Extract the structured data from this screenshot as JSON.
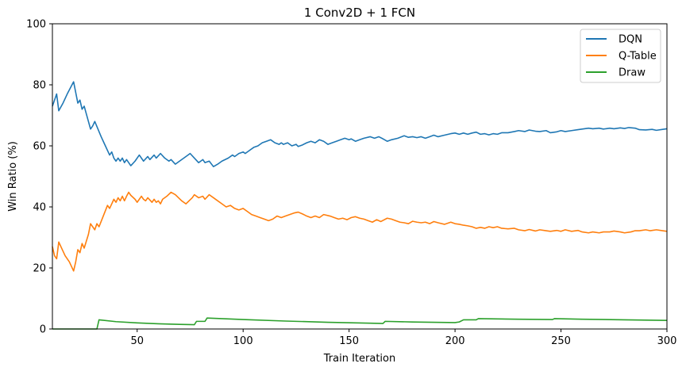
{
  "chart_data": {
    "type": "line",
    "title": "1 Conv2D + 1 FCN",
    "xlabel": "Train Iteration",
    "ylabel": "Win Ratio (%)",
    "xlim": [
      10,
      300
    ],
    "ylim": [
      0,
      100
    ],
    "xticks": [
      50,
      100,
      150,
      200,
      250,
      300
    ],
    "yticks": [
      0,
      20,
      40,
      60,
      80,
      100
    ],
    "grid": false,
    "legend_position": "upper right",
    "series": [
      {
        "name": "DQN",
        "color": "#1f77b4",
        "points": [
          [
            10,
            73
          ],
          [
            12,
            77
          ],
          [
            13,
            71.5
          ],
          [
            15,
            74
          ],
          [
            17,
            77
          ],
          [
            20,
            81
          ],
          [
            22,
            74
          ],
          [
            23,
            75
          ],
          [
            24,
            72
          ],
          [
            25,
            73
          ],
          [
            27,
            68
          ],
          [
            28,
            65.5
          ],
          [
            29,
            66.5
          ],
          [
            30,
            68
          ],
          [
            33,
            63
          ],
          [
            35,
            60
          ],
          [
            37,
            57
          ],
          [
            38,
            58
          ],
          [
            39,
            56
          ],
          [
            40,
            55
          ],
          [
            41,
            56
          ],
          [
            42,
            55
          ],
          [
            43,
            56
          ],
          [
            44,
            54.5
          ],
          [
            45,
            55.5
          ],
          [
            47,
            53.5
          ],
          [
            49,
            55
          ],
          [
            51,
            57
          ],
          [
            53,
            55
          ],
          [
            55,
            56.5
          ],
          [
            56,
            55.5
          ],
          [
            58,
            57
          ],
          [
            59,
            56
          ],
          [
            61,
            57.5
          ],
          [
            63,
            56
          ],
          [
            65,
            55
          ],
          [
            66,
            55.5
          ],
          [
            68,
            54
          ],
          [
            70,
            55
          ],
          [
            73,
            56.5
          ],
          [
            75,
            57.5
          ],
          [
            77,
            56
          ],
          [
            79,
            54.5
          ],
          [
            81,
            55.5
          ],
          [
            82,
            54.5
          ],
          [
            84,
            55
          ],
          [
            86,
            53.2
          ],
          [
            88,
            54
          ],
          [
            90,
            55
          ],
          [
            93,
            56
          ],
          [
            95,
            57
          ],
          [
            96,
            56.5
          ],
          [
            98,
            57.5
          ],
          [
            100,
            58
          ],
          [
            101,
            57.5
          ],
          [
            103,
            58.5
          ],
          [
            105,
            59.5
          ],
          [
            107,
            60
          ],
          [
            109,
            61
          ],
          [
            111,
            61.5
          ],
          [
            113,
            62
          ],
          [
            115,
            61
          ],
          [
            117,
            60.5
          ],
          [
            118,
            61
          ],
          [
            119,
            60.5
          ],
          [
            121,
            61
          ],
          [
            123,
            60
          ],
          [
            125,
            60.5
          ],
          [
            126,
            59.8
          ],
          [
            128,
            60.3
          ],
          [
            130,
            61
          ],
          [
            132,
            61.5
          ],
          [
            134,
            61
          ],
          [
            136,
            62
          ],
          [
            138,
            61.5
          ],
          [
            140,
            60.5
          ],
          [
            142,
            61
          ],
          [
            144,
            61.5
          ],
          [
            146,
            62
          ],
          [
            148,
            62.5
          ],
          [
            150,
            62
          ],
          [
            151,
            62.3
          ],
          [
            153,
            61.5
          ],
          [
            155,
            62
          ],
          [
            157,
            62.5
          ],
          [
            160,
            63
          ],
          [
            162,
            62.5
          ],
          [
            164,
            63
          ],
          [
            166,
            62.3
          ],
          [
            168,
            61.5
          ],
          [
            170,
            62
          ],
          [
            173,
            62.5
          ],
          [
            176,
            63.3
          ],
          [
            178,
            62.8
          ],
          [
            180,
            63
          ],
          [
            182,
            62.7
          ],
          [
            184,
            63
          ],
          [
            186,
            62.5
          ],
          [
            188,
            63
          ],
          [
            190,
            63.5
          ],
          [
            192,
            63
          ],
          [
            195,
            63.5
          ],
          [
            198,
            64
          ],
          [
            200,
            64.2
          ],
          [
            202,
            63.8
          ],
          [
            204,
            64.2
          ],
          [
            206,
            63.8
          ],
          [
            208,
            64.2
          ],
          [
            210,
            64.5
          ],
          [
            212,
            63.8
          ],
          [
            214,
            64
          ],
          [
            216,
            63.6
          ],
          [
            218,
            64
          ],
          [
            220,
            63.8
          ],
          [
            222,
            64.3
          ],
          [
            225,
            64.3
          ],
          [
            228,
            64.7
          ],
          [
            230,
            65
          ],
          [
            233,
            64.7
          ],
          [
            235,
            65.2
          ],
          [
            238,
            64.8
          ],
          [
            240,
            64.7
          ],
          [
            243,
            65
          ],
          [
            245,
            64.3
          ],
          [
            248,
            64.6
          ],
          [
            250,
            65
          ],
          [
            252,
            64.7
          ],
          [
            255,
            65
          ],
          [
            258,
            65.3
          ],
          [
            260,
            65.5
          ],
          [
            263,
            65.8
          ],
          [
            265,
            65.6
          ],
          [
            268,
            65.8
          ],
          [
            270,
            65.5
          ],
          [
            273,
            65.8
          ],
          [
            275,
            65.6
          ],
          [
            278,
            65.9
          ],
          [
            280,
            65.7
          ],
          [
            282,
            66
          ],
          [
            285,
            65.8
          ],
          [
            287,
            65.3
          ],
          [
            290,
            65.2
          ],
          [
            293,
            65.4
          ],
          [
            295,
            65.1
          ],
          [
            298,
            65.4
          ],
          [
            300,
            65.6
          ]
        ]
      },
      {
        "name": "Q-Table",
        "color": "#ff7f0e",
        "points": [
          [
            10,
            27
          ],
          [
            11,
            24
          ],
          [
            12,
            23
          ],
          [
            13,
            28.5
          ],
          [
            14,
            27
          ],
          [
            16,
            24
          ],
          [
            18,
            22
          ],
          [
            20,
            19
          ],
          [
            21,
            22
          ],
          [
            22,
            26
          ],
          [
            23,
            25
          ],
          [
            24,
            28
          ],
          [
            25,
            26.5
          ],
          [
            27,
            31
          ],
          [
            28,
            34.5
          ],
          [
            30,
            32.5
          ],
          [
            31,
            34.5
          ],
          [
            32,
            33.5
          ],
          [
            34,
            37
          ],
          [
            36,
            40.5
          ],
          [
            37,
            39.5
          ],
          [
            38,
            41
          ],
          [
            39,
            42.5
          ],
          [
            40,
            41.5
          ],
          [
            41,
            43
          ],
          [
            42,
            42
          ],
          [
            43,
            43.5
          ],
          [
            44,
            42
          ],
          [
            45,
            43.5
          ],
          [
            46,
            44.8
          ],
          [
            47,
            43.8
          ],
          [
            49,
            42.5
          ],
          [
            50,
            41.5
          ],
          [
            51,
            42.5
          ],
          [
            52,
            43.5
          ],
          [
            53,
            42.5
          ],
          [
            54,
            42
          ],
          [
            55,
            43
          ],
          [
            57,
            41.5
          ],
          [
            58,
            42.5
          ],
          [
            59,
            41.5
          ],
          [
            60,
            42
          ],
          [
            61,
            41
          ],
          [
            62,
            42.5
          ],
          [
            64,
            43.5
          ],
          [
            66,
            44.8
          ],
          [
            68,
            44
          ],
          [
            71,
            42
          ],
          [
            73,
            41
          ],
          [
            76,
            43
          ],
          [
            77,
            44
          ],
          [
            79,
            43
          ],
          [
            81,
            43.5
          ],
          [
            82,
            42.5
          ],
          [
            84,
            44
          ],
          [
            86,
            43
          ],
          [
            88,
            42
          ],
          [
            90,
            41
          ],
          [
            92,
            40
          ],
          [
            94,
            40.5
          ],
          [
            96,
            39.5
          ],
          [
            98,
            39
          ],
          [
            100,
            39.5
          ],
          [
            102,
            38.5
          ],
          [
            104,
            37.5
          ],
          [
            106,
            37
          ],
          [
            108,
            36.5
          ],
          [
            110,
            36
          ],
          [
            112,
            35.5
          ],
          [
            114,
            36
          ],
          [
            116,
            37
          ],
          [
            118,
            36.5
          ],
          [
            120,
            37
          ],
          [
            122,
            37.5
          ],
          [
            124,
            38
          ],
          [
            126,
            38.3
          ],
          [
            128,
            37.7
          ],
          [
            130,
            37
          ],
          [
            132,
            36.5
          ],
          [
            134,
            37
          ],
          [
            136,
            36.5
          ],
          [
            138,
            37.5
          ],
          [
            141,
            37
          ],
          [
            143,
            36.5
          ],
          [
            145,
            36
          ],
          [
            147,
            36.3
          ],
          [
            149,
            35.8
          ],
          [
            151,
            36.5
          ],
          [
            153,
            36.8
          ],
          [
            155,
            36.3
          ],
          [
            157,
            36
          ],
          [
            159,
            35.5
          ],
          [
            161,
            35
          ],
          [
            163,
            35.8
          ],
          [
            165,
            35.2
          ],
          [
            168,
            36.3
          ],
          [
            170,
            36
          ],
          [
            172,
            35.5
          ],
          [
            174,
            35
          ],
          [
            176,
            34.8
          ],
          [
            178,
            34.5
          ],
          [
            180,
            35.3
          ],
          [
            182,
            35
          ],
          [
            184,
            34.8
          ],
          [
            186,
            35
          ],
          [
            188,
            34.5
          ],
          [
            190,
            35.2
          ],
          [
            192,
            34.8
          ],
          [
            195,
            34.3
          ],
          [
            198,
            35
          ],
          [
            200,
            34.5
          ],
          [
            202,
            34.3
          ],
          [
            204,
            34
          ],
          [
            206,
            33.8
          ],
          [
            208,
            33.5
          ],
          [
            210,
            33
          ],
          [
            212,
            33.3
          ],
          [
            214,
            33
          ],
          [
            216,
            33.5
          ],
          [
            218,
            33.2
          ],
          [
            220,
            33.5
          ],
          [
            222,
            33
          ],
          [
            225,
            32.8
          ],
          [
            228,
            33
          ],
          [
            230,
            32.5
          ],
          [
            233,
            32.2
          ],
          [
            235,
            32.6
          ],
          [
            238,
            32.1
          ],
          [
            240,
            32.5
          ],
          [
            243,
            32.2
          ],
          [
            245,
            32
          ],
          [
            248,
            32.3
          ],
          [
            250,
            32
          ],
          [
            252,
            32.5
          ],
          [
            255,
            32
          ],
          [
            258,
            32.3
          ],
          [
            260,
            31.8
          ],
          [
            263,
            31.5
          ],
          [
            265,
            31.8
          ],
          [
            268,
            31.5
          ],
          [
            270,
            31.8
          ],
          [
            273,
            31.8
          ],
          [
            275,
            32.1
          ],
          [
            278,
            31.8
          ],
          [
            280,
            31.5
          ],
          [
            283,
            31.8
          ],
          [
            285,
            32.2
          ],
          [
            287,
            32.2
          ],
          [
            290,
            32.5
          ],
          [
            292,
            32.2
          ],
          [
            295,
            32.5
          ],
          [
            298,
            32.2
          ],
          [
            300,
            32
          ]
        ]
      },
      {
        "name": "Draw",
        "color": "#2ca02c",
        "points": [
          [
            10,
            0
          ],
          [
            31,
            0
          ],
          [
            32,
            3
          ],
          [
            40,
            2.4
          ],
          [
            50,
            2
          ],
          [
            60,
            1.7
          ],
          [
            70,
            1.5
          ],
          [
            77,
            1.4
          ],
          [
            78,
            2.5
          ],
          [
            82,
            2.5
          ],
          [
            83,
            3.6
          ],
          [
            100,
            3.1
          ],
          [
            120,
            2.6
          ],
          [
            140,
            2.2
          ],
          [
            160,
            1.9
          ],
          [
            166,
            1.8
          ],
          [
            167,
            2.5
          ],
          [
            180,
            2.3
          ],
          [
            200,
            2.1
          ],
          [
            202,
            2.3
          ],
          [
            204,
            3
          ],
          [
            210,
            3
          ],
          [
            211,
            3.4
          ],
          [
            230,
            3.2
          ],
          [
            246,
            3.1
          ],
          [
            247,
            3.4
          ],
          [
            260,
            3.2
          ],
          [
            280,
            3
          ],
          [
            300,
            2.8
          ]
        ]
      }
    ]
  }
}
